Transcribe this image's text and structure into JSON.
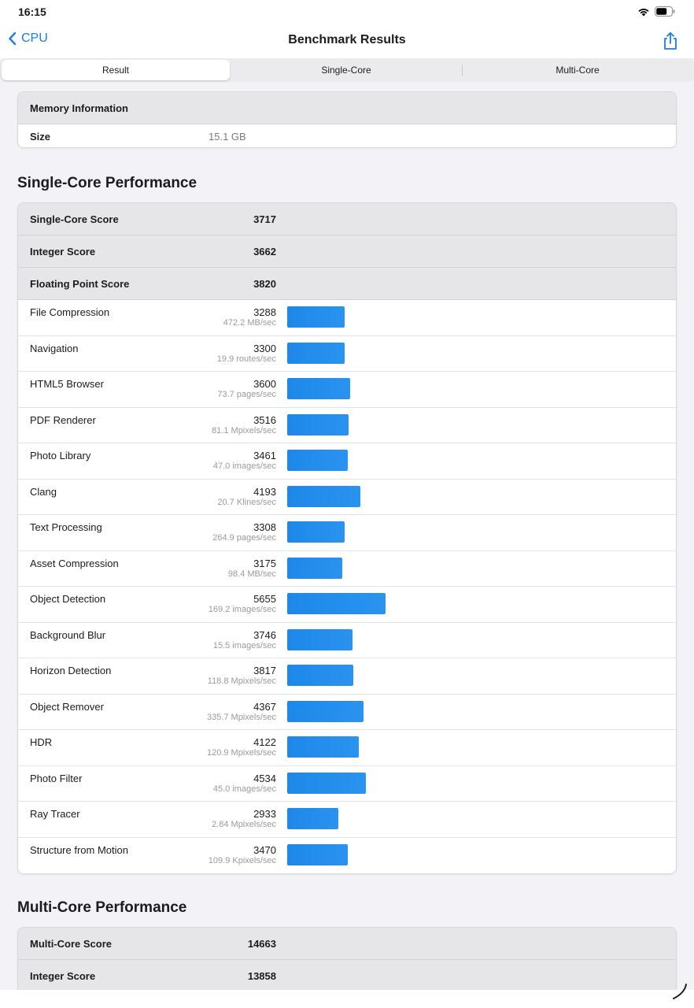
{
  "status_bar": {
    "time": "16:15",
    "wifi_icon": "wifi-icon",
    "battery_icon": "battery-icon"
  },
  "nav": {
    "back_label": "CPU",
    "title": "Benchmark Results",
    "share_icon": "share-icon"
  },
  "tabs": [
    {
      "label": "Result",
      "active": true
    },
    {
      "label": "Single-Core",
      "active": false
    },
    {
      "label": "Multi-Core",
      "active": false
    }
  ],
  "memory": {
    "header": "Memory Information",
    "size_label": "Size",
    "size_value": "15.1 GB"
  },
  "single_core": {
    "section_title": "Single-Core Performance",
    "summary": [
      {
        "label": "Single-Core Score",
        "value": "3717"
      },
      {
        "label": "Integer Score",
        "value": "3662"
      },
      {
        "label": "Floating Point Score",
        "value": "3820"
      }
    ],
    "benchmarks": [
      {
        "name": "File Compression",
        "score": "3288",
        "rate": "472.2 MB/sec",
        "value": 3288
      },
      {
        "name": "Navigation",
        "score": "3300",
        "rate": "19.9 routes/sec",
        "value": 3300
      },
      {
        "name": "HTML5 Browser",
        "score": "3600",
        "rate": "73.7 pages/sec",
        "value": 3600
      },
      {
        "name": "PDF Renderer",
        "score": "3516",
        "rate": "81.1 Mpixels/sec",
        "value": 3516
      },
      {
        "name": "Photo Library",
        "score": "3461",
        "rate": "47.0 images/sec",
        "value": 3461
      },
      {
        "name": "Clang",
        "score": "4193",
        "rate": "20.7 Klines/sec",
        "value": 4193
      },
      {
        "name": "Text Processing",
        "score": "3308",
        "rate": "264.9 pages/sec",
        "value": 3308
      },
      {
        "name": "Asset Compression",
        "score": "3175",
        "rate": "98.4 MB/sec",
        "value": 3175
      },
      {
        "name": "Object Detection",
        "score": "5655",
        "rate": "169.2 images/sec",
        "value": 5655
      },
      {
        "name": "Background Blur",
        "score": "3746",
        "rate": "15.5 images/sec",
        "value": 3746
      },
      {
        "name": "Horizon Detection",
        "score": "3817",
        "rate": "118.8 Mpixels/sec",
        "value": 3817
      },
      {
        "name": "Object Remover",
        "score": "4367",
        "rate": "335.7 Mpixels/sec",
        "value": 4367
      },
      {
        "name": "HDR",
        "score": "4122",
        "rate": "120.9 Mpixels/sec",
        "value": 4122
      },
      {
        "name": "Photo Filter",
        "score": "4534",
        "rate": "45.0 images/sec",
        "value": 4534
      },
      {
        "name": "Ray Tracer",
        "score": "2933",
        "rate": "2.84 Mpixels/sec",
        "value": 2933
      },
      {
        "name": "Structure from Motion",
        "score": "3470",
        "rate": "109.9 Kpixels/sec",
        "value": 3470
      }
    ]
  },
  "multi_core": {
    "section_title": "Multi-Core Performance",
    "summary": [
      {
        "label": "Multi-Core Score",
        "value": "14663"
      },
      {
        "label": "Integer Score",
        "value": "13858"
      }
    ]
  },
  "colors": {
    "accent": "#1a7ee6",
    "bar": "#1e88ea"
  }
}
